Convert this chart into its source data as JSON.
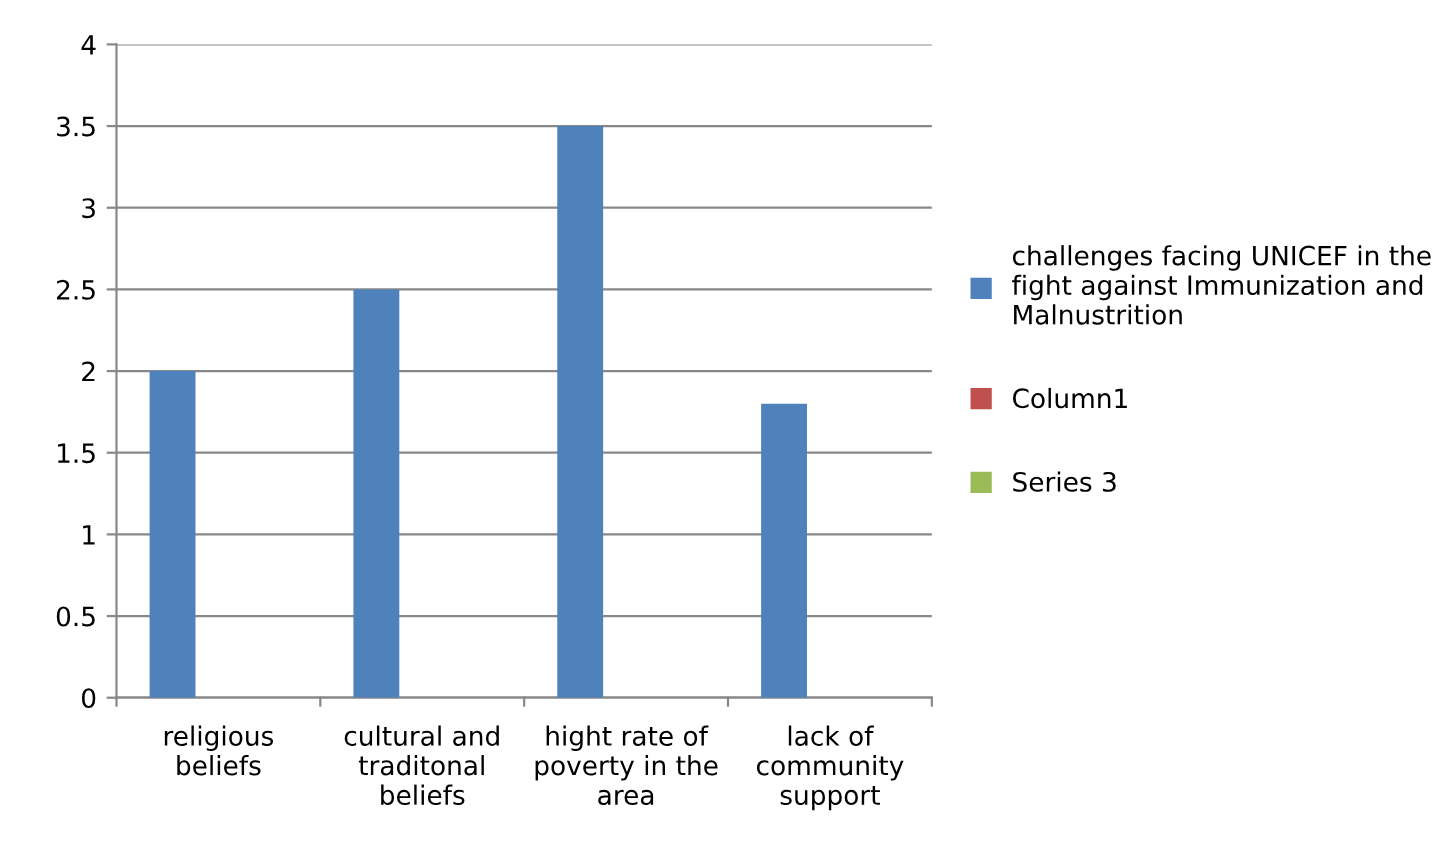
{
  "chart_data": {
    "type": "bar",
    "categories": [
      "religious beliefs",
      "cultural and traditonal beliefs",
      "hight rate of poverty in the area",
      "lack of community support"
    ],
    "series": [
      {
        "name": "challenges facing UNICEF in the fight against Immunization and Malnustrition",
        "color": "#4f81bd",
        "values": [
          2,
          2.5,
          3.5,
          1.8
        ]
      },
      {
        "name": "Column1",
        "color": "#c0504d",
        "values": [
          null,
          null,
          null,
          null
        ]
      },
      {
        "name": "Series 3",
        "color": "#9bbb59",
        "values": [
          null,
          null,
          null,
          null
        ]
      }
    ],
    "ylim": [
      0,
      4
    ],
    "yticks": [
      0,
      0.5,
      1,
      1.5,
      2,
      2.5,
      3,
      3.5,
      4
    ],
    "grid": "y",
    "legend": "right"
  }
}
